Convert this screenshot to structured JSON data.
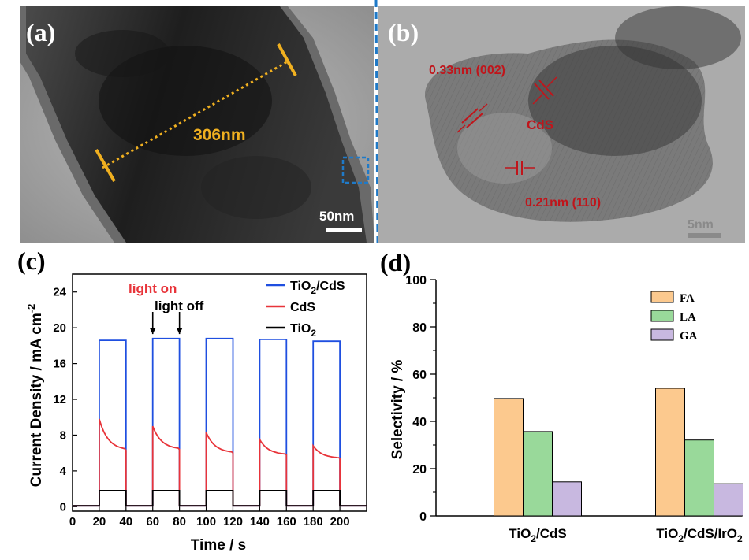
{
  "panels": {
    "a": {
      "label": "(a)",
      "measure_label": "306nm",
      "scale_label": "50nm",
      "colors": {
        "measure": "#f0b020",
        "box": "#1f7ac8"
      }
    },
    "b": {
      "label": "(b)",
      "lattice_1": "0.33nm (002)",
      "phase": "CdS",
      "lattice_2": "0.21nm (110)",
      "scale_label": "5nm",
      "colors": {
        "annotation": "#c0151b"
      }
    },
    "c": {
      "label": "(c)",
      "light_on": "light on",
      "light_off": "light off",
      "legend": [
        {
          "base": "TiO",
          "sub": "2",
          "rest": "/CdS",
          "color": "#1f4fe0"
        },
        {
          "base": "CdS",
          "sub": "",
          "rest": "",
          "color": "#e8343a"
        },
        {
          "base": "TiO",
          "sub": "2",
          "rest": "",
          "color": "#000000"
        }
      ]
    },
    "d": {
      "label": "(d)",
      "legend": [
        {
          "label": "FA",
          "color": "#fcc98e"
        },
        {
          "label": "LA",
          "color": "#99d99a"
        },
        {
          "label": "GA",
          "color": "#c8b8e0"
        }
      ]
    }
  },
  "chart_data": [
    {
      "id": "c",
      "type": "line",
      "title": "",
      "xlabel": "Time / s",
      "ylabel": "Current Density / mA cm",
      "ylabel_sup": "-2",
      "xlim": [
        0,
        220
      ],
      "ylim": [
        -0.5,
        26
      ],
      "xticks": [
        0,
        20,
        40,
        60,
        80,
        100,
        120,
        140,
        160,
        180,
        200
      ],
      "yticks": [
        0,
        4,
        8,
        12,
        16,
        20,
        24
      ],
      "light_periods": [
        [
          20,
          40
        ],
        [
          60,
          80
        ],
        [
          100,
          120
        ],
        [
          140,
          160
        ],
        [
          180,
          200
        ]
      ],
      "series": [
        {
          "name": "TiO2/CdS",
          "dark": 0.1,
          "plateaus": [
            18.6,
            18.8,
            18.8,
            18.7,
            18.5
          ]
        },
        {
          "name": "CdS",
          "dark": 0.1,
          "peaks": [
            9.8,
            9.0,
            8.3,
            7.5,
            6.8
          ],
          "ends": [
            6.3,
            6.4,
            6.0,
            5.8,
            5.4
          ]
        },
        {
          "name": "TiO2",
          "dark": 0.1,
          "plateaus": [
            1.8,
            1.8,
            1.8,
            1.8,
            1.8
          ]
        }
      ]
    },
    {
      "id": "d",
      "type": "bar",
      "title": "",
      "xlabel": "",
      "ylabel": "Selectivity / %",
      "ylim": [
        0,
        100
      ],
      "yticks": [
        0,
        20,
        40,
        60,
        80,
        100
      ],
      "categories": [
        {
          "base": "TiO",
          "sub": "2",
          "rest": "/CdS",
          "sub2": "",
          "rest2": ""
        },
        {
          "base": "TiO",
          "sub": "2",
          "rest": "/CdS/IrO",
          "sub2": "2",
          "rest2": ""
        }
      ],
      "series": [
        {
          "name": "FA",
          "values": [
            49.7,
            54.0
          ]
        },
        {
          "name": "LA",
          "values": [
            35.7,
            32.1
          ]
        },
        {
          "name": "GA",
          "values": [
            14.4,
            13.6
          ]
        }
      ]
    }
  ]
}
